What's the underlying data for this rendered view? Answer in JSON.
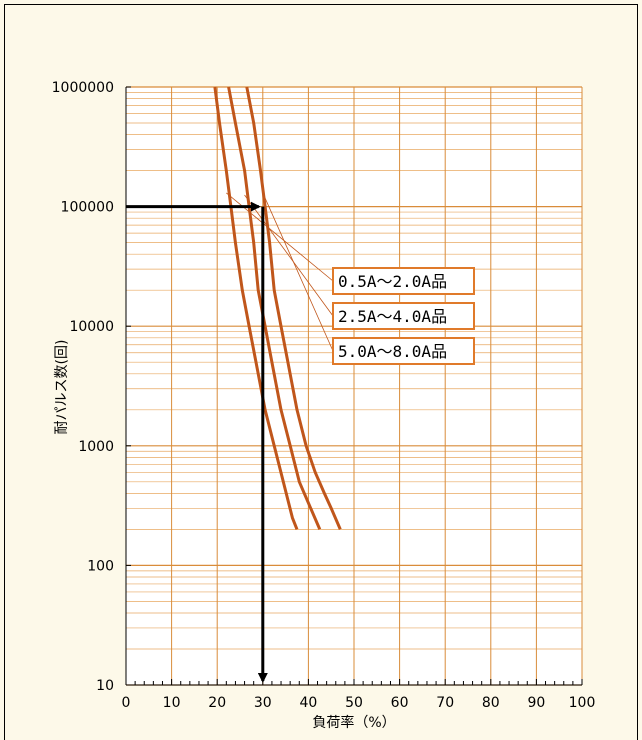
{
  "chart_data": {
    "type": "line",
    "xlabel": "負荷率（%）",
    "ylabel": "耐パルス数(回)",
    "xlim": [
      0,
      100
    ],
    "ylim": [
      10,
      1000000
    ],
    "yscale": "log",
    "x_ticks": [
      "0",
      "10",
      "20",
      "30",
      "40",
      "50",
      "60",
      "70",
      "80",
      "90",
      "100"
    ],
    "y_ticks": [
      "10",
      "100",
      "1000",
      "10000",
      "100000",
      "1000000"
    ],
    "grid": true,
    "colors": {
      "background": "#fdf9e9",
      "plot_background": "#ffffff",
      "grid_major": "#d98c3a",
      "grid_minor": "#e8a860",
      "series": "#c0561b",
      "leader": "#c0561b",
      "legend_border": "#e07a2a",
      "arrow": "#000000"
    },
    "series": [
      {
        "name": "0.5A～2.0A品",
        "x": [
          19.5,
          20.5,
          22,
          23,
          24,
          25.5,
          27,
          28.5,
          30.5,
          32.5,
          34.5,
          36.5,
          37.5
        ],
        "y": [
          1000000,
          500000,
          200000,
          100000,
          50000,
          20000,
          10000,
          5000,
          2000,
          1000,
          500,
          250,
          200
        ]
      },
      {
        "name": "2.5A～4.0A品",
        "x": [
          22.5,
          24,
          26,
          27,
          28,
          29,
          30.5,
          32,
          34,
          36,
          38,
          40.5,
          42.5
        ],
        "y": [
          1000000,
          500000,
          200000,
          100000,
          50000,
          20000,
          10000,
          5000,
          2000,
          1000,
          500,
          300,
          200
        ]
      },
      {
        "name": "5.0A～8.0A品",
        "x": [
          26.5,
          28,
          29.5,
          30.5,
          31.5,
          32.5,
          34,
          35.5,
          37.5,
          39.5,
          41.5,
          43.5,
          45,
          47
        ],
        "y": [
          1000000,
          500000,
          200000,
          100000,
          50000,
          20000,
          10000,
          5000,
          2000,
          1000,
          600,
          400,
          300,
          200
        ]
      }
    ],
    "annotations": {
      "example_arrow": {
        "x": 30,
        "y": 100000
      }
    }
  }
}
